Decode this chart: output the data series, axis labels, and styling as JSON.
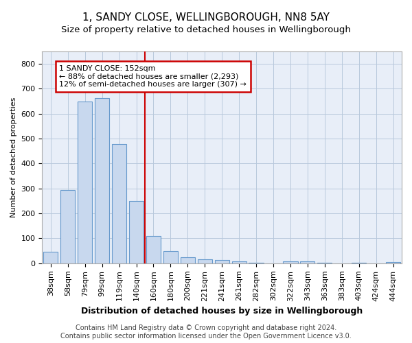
{
  "title1": "1, SANDY CLOSE, WELLINGBOROUGH, NN8 5AY",
  "title2": "Size of property relative to detached houses in Wellingborough",
  "xlabel": "Distribution of detached houses by size in Wellingborough",
  "ylabel": "Number of detached properties",
  "bar_labels": [
    "38sqm",
    "58sqm",
    "79sqm",
    "99sqm",
    "119sqm",
    "140sqm",
    "160sqm",
    "180sqm",
    "200sqm",
    "221sqm",
    "241sqm",
    "261sqm",
    "282sqm",
    "302sqm",
    "322sqm",
    "343sqm",
    "363sqm",
    "383sqm",
    "403sqm",
    "424sqm",
    "444sqm"
  ],
  "bar_values": [
    45,
    293,
    650,
    663,
    478,
    250,
    110,
    48,
    25,
    15,
    13,
    8,
    3,
    0,
    8,
    8,
    3,
    0,
    3,
    0,
    5
  ],
  "bar_color": "#c8d8ee",
  "bar_edge_color": "#6699cc",
  "vline_x": 5.5,
  "vline_color": "#cc0000",
  "annotation_line1": "1 SANDY CLOSE: 152sqm",
  "annotation_line2": "← 88% of detached houses are smaller (2,293)",
  "annotation_line3": "12% of semi-detached houses are larger (307) →",
  "annotation_box_color": "#ffffff",
  "annotation_box_edge": "#cc0000",
  "ylim": [
    0,
    850
  ],
  "yticks": [
    0,
    100,
    200,
    300,
    400,
    500,
    600,
    700,
    800
  ],
  "footer_text": "Contains HM Land Registry data © Crown copyright and database right 2024.\nContains public sector information licensed under the Open Government Licence v3.0.",
  "bg_color": "#e8eef8",
  "title1_fontsize": 11,
  "title2_fontsize": 9.5,
  "xlabel_fontsize": 9,
  "ylabel_fontsize": 8,
  "tick_fontsize": 8,
  "footer_fontsize": 7,
  "annotation_fontsize": 8
}
